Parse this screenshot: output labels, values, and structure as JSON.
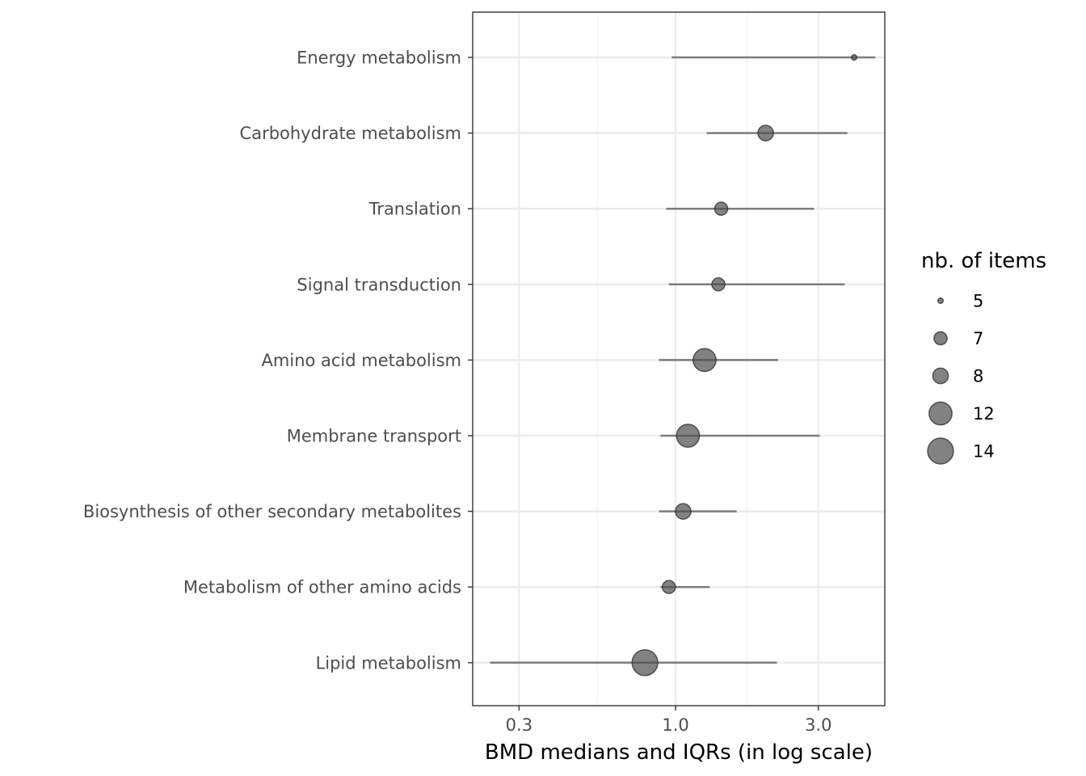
{
  "chart_data": {
    "type": "scatter",
    "xlabel": "BMD medians and IQRs (in log scale)",
    "ylabel": "",
    "x_scale": "log10",
    "xlim": [
      0.21,
      5.0
    ],
    "x_ticks": [
      {
        "value": 0.3,
        "label": "0.3"
      },
      {
        "value": 1.0,
        "label": "1.0"
      },
      {
        "value": 3.0,
        "label": "3.0"
      }
    ],
    "grid": true,
    "legend": {
      "title": "nb. of items",
      "position": "right",
      "entries": [
        {
          "value": 5,
          "label": "5"
        },
        {
          "value": 7,
          "label": "7"
        },
        {
          "value": 8,
          "label": "8"
        },
        {
          "value": 12,
          "label": "12"
        },
        {
          "value": 14,
          "label": "14"
        }
      ]
    },
    "point_color": "#4d4d4d",
    "point_alpha": 0.7,
    "categories": [
      {
        "label": "Energy metabolism",
        "median": 3.95,
        "q1": 0.97,
        "q3": 4.65,
        "n": 5
      },
      {
        "label": "Carbohydrate metabolism",
        "median": 2.0,
        "q1": 1.27,
        "q3": 3.75,
        "n": 8
      },
      {
        "label": "Translation",
        "median": 1.42,
        "q1": 0.93,
        "q3": 2.9,
        "n": 7
      },
      {
        "label": "Signal transduction",
        "median": 1.39,
        "q1": 0.95,
        "q3": 3.67,
        "n": 7
      },
      {
        "label": "Amino acid metabolism",
        "median": 1.25,
        "q1": 0.88,
        "q3": 2.2,
        "n": 12
      },
      {
        "label": "Membrane transport",
        "median": 1.1,
        "q1": 0.89,
        "q3": 3.03,
        "n": 12
      },
      {
        "label": "Biosynthesis of other secondary metabolites",
        "median": 1.06,
        "q1": 0.88,
        "q3": 1.6,
        "n": 8
      },
      {
        "label": "Metabolism of other amino acids",
        "median": 0.95,
        "q1": 0.89,
        "q3": 1.3,
        "n": 7
      },
      {
        "label": "Lipid metabolism",
        "median": 0.79,
        "q1": 0.24,
        "q3": 2.18,
        "n": 14
      }
    ]
  }
}
